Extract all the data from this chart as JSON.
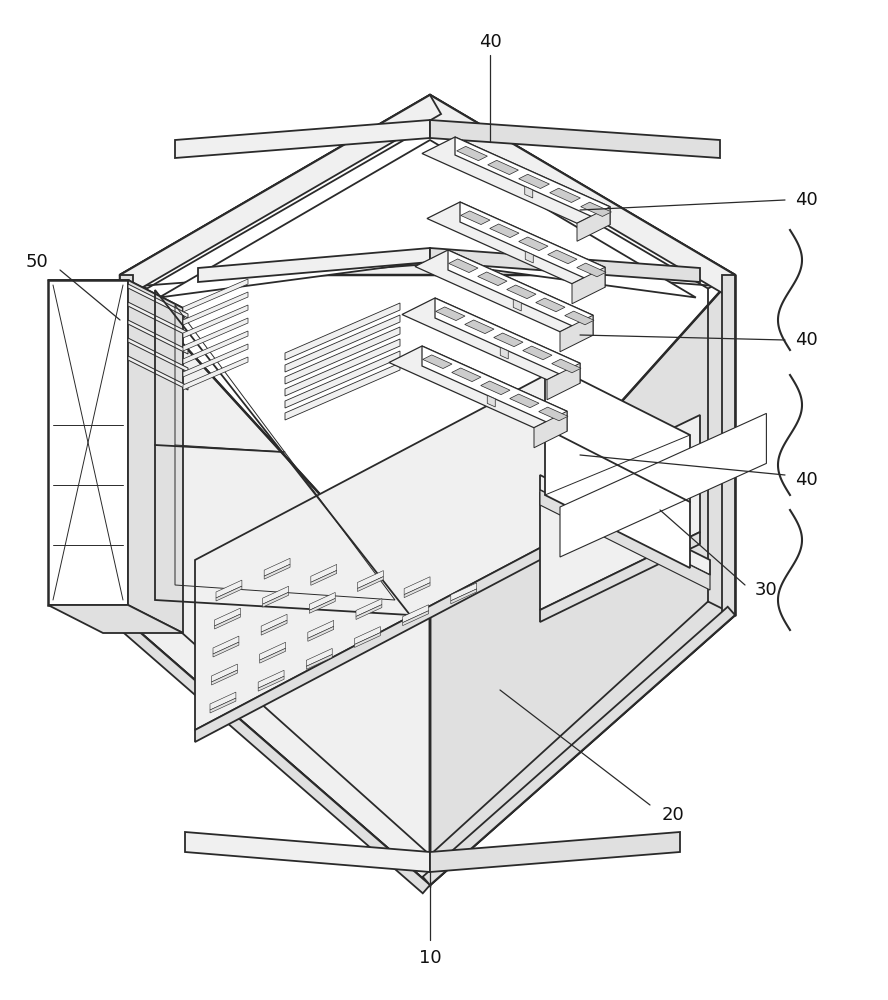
{
  "bg_color": "#ffffff",
  "line_color": "#2a2a2a",
  "lw_main": 1.3,
  "lw_thin": 0.7,
  "lw_thick": 1.8,
  "fc_white": "#ffffff",
  "fc_light": "#f0f0f0",
  "fc_mid": "#e0e0e0",
  "fc_dark": "#cccccc",
  "label_fontsize": 13,
  "label_color": "#111111"
}
